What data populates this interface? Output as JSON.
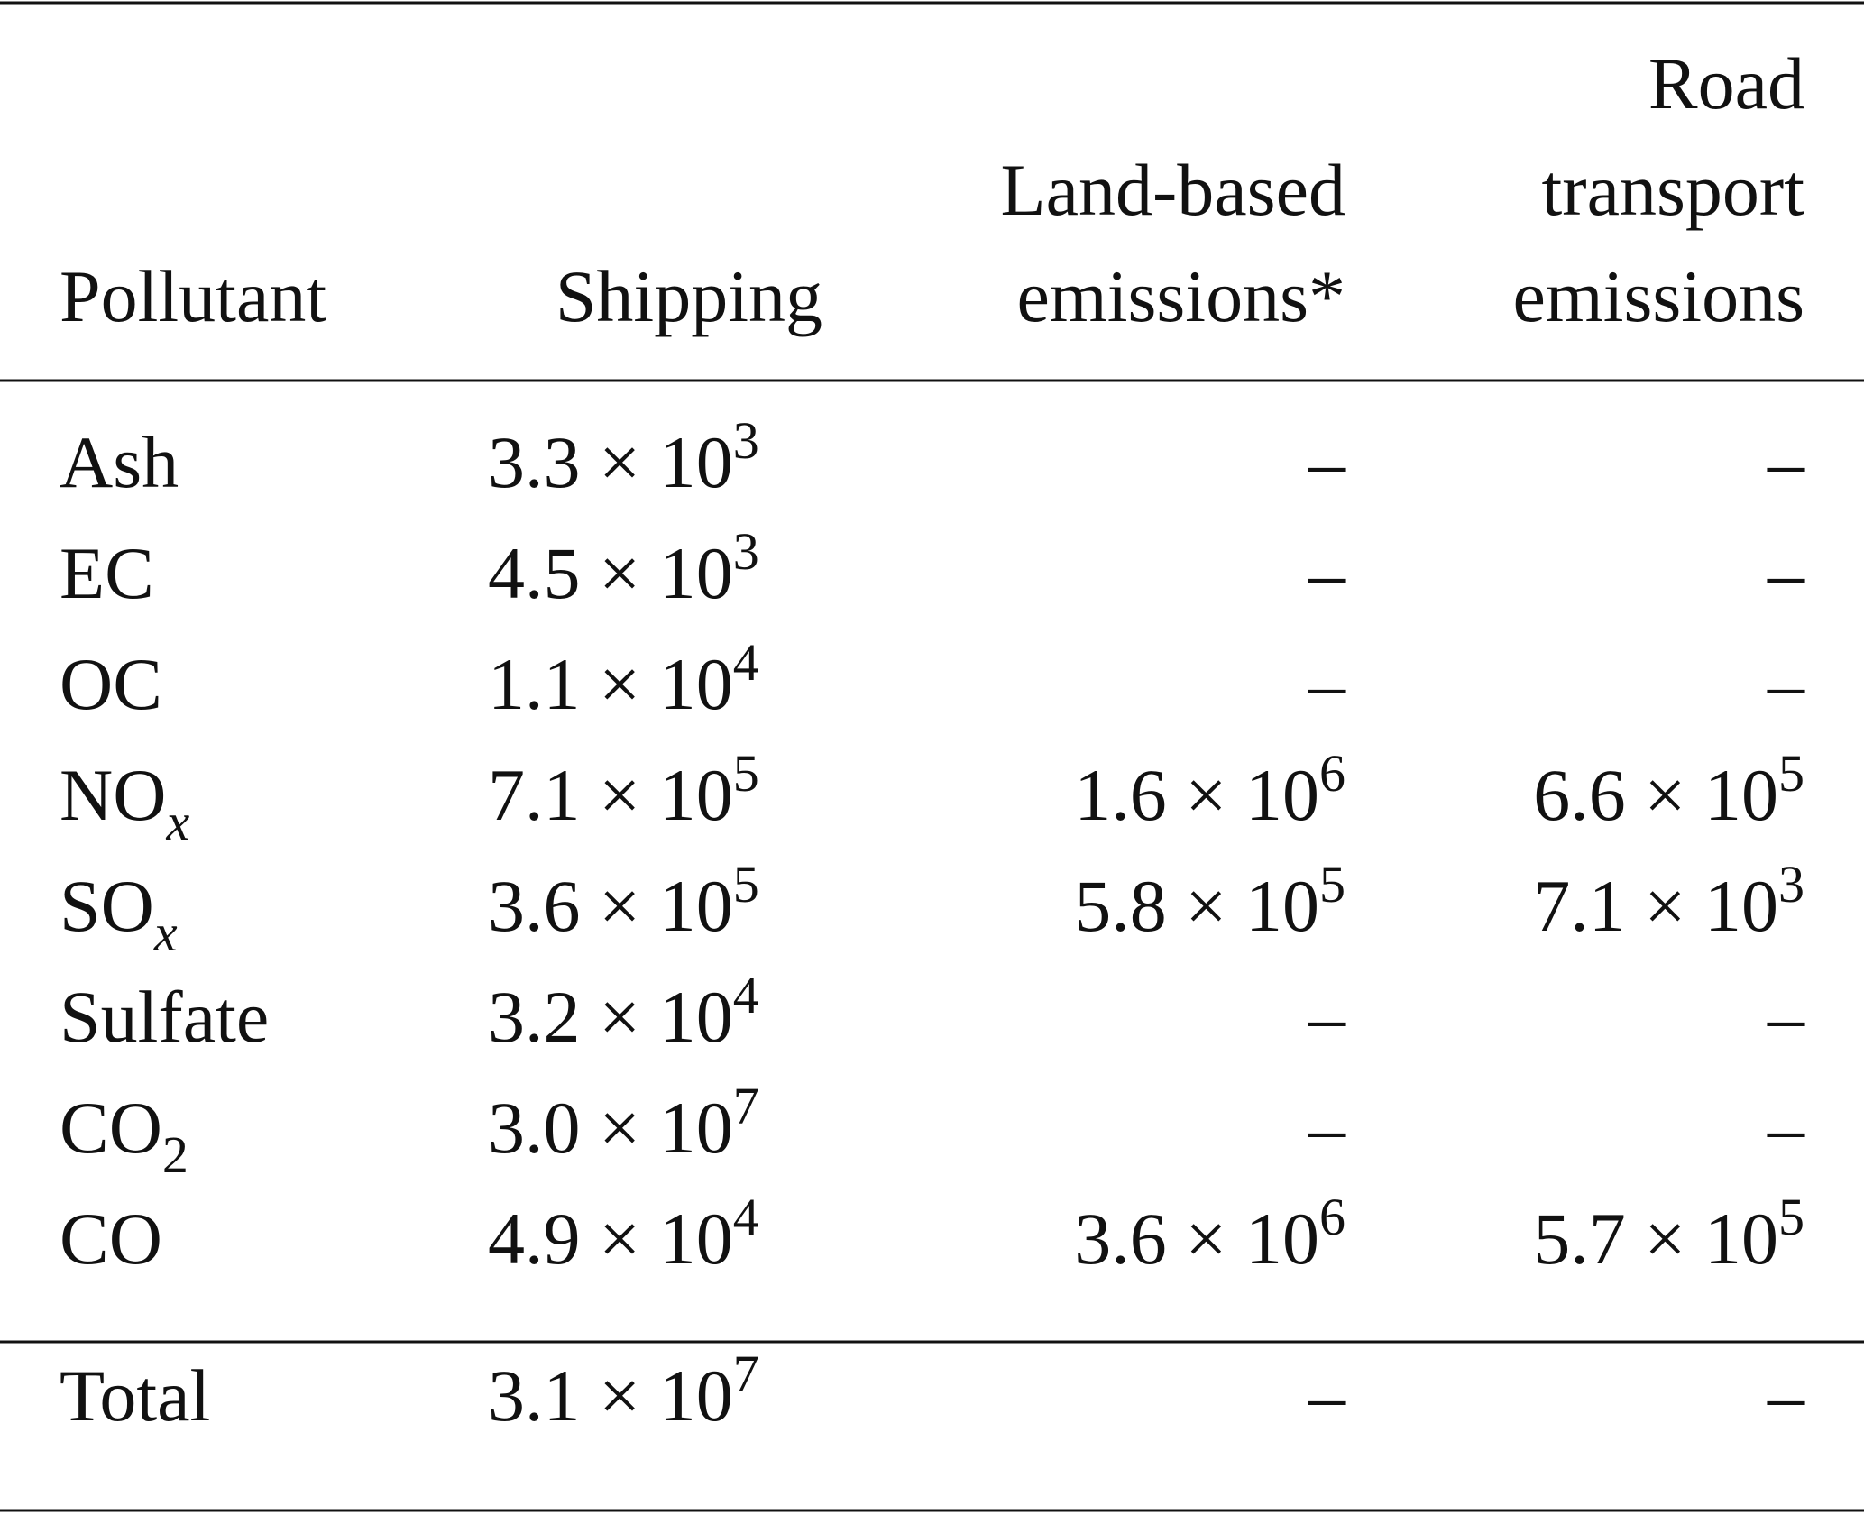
{
  "table": {
    "header": [
      [
        "Pollutant"
      ],
      [
        "Shipping"
      ],
      [
        "Land-based",
        "emissions*"
      ],
      [
        "Road",
        "transport",
        "emissions"
      ]
    ],
    "rows": [
      [
        "Ash",
        {
          "base": "3.3 × 10",
          "sup": "3"
        },
        "–",
        "–"
      ],
      [
        "EC",
        {
          "base": "4.5 × 10",
          "sup": "3"
        },
        "–",
        "–"
      ],
      [
        "OC",
        {
          "base": "1.1 × 10",
          "sup": "4"
        },
        "–",
        "–"
      ],
      [
        {
          "base": "NO",
          "sub": "x"
        },
        {
          "base": "7.1 × 10",
          "sup": "5"
        },
        {
          "base": "1.6 × 10",
          "sup": "6"
        },
        {
          "base": "6.6 × 10",
          "sup": "5"
        }
      ],
      [
        {
          "base": "SO",
          "sub": "x"
        },
        {
          "base": "3.6 × 10",
          "sup": "5"
        },
        {
          "base": "5.8 × 10",
          "sup": "5"
        },
        {
          "base": "7.1 × 10",
          "sup": "3"
        }
      ],
      [
        "Sulfate",
        {
          "base": "3.2 × 10",
          "sup": "4"
        },
        "–",
        "–"
      ],
      [
        {
          "base": "CO",
          "sub": "2"
        },
        {
          "base": "3.0 × 10",
          "sup": "7"
        },
        "–",
        "–"
      ],
      [
        "CO",
        {
          "base": "4.9 × 10",
          "sup": "4"
        },
        {
          "base": "3.6 × 10",
          "sup": "6"
        },
        {
          "base": "5.7 × 10",
          "sup": "5"
        }
      ]
    ],
    "total": [
      "Total",
      {
        "base": "3.1 × 10",
        "sup": "7"
      },
      "–",
      "–"
    ]
  }
}
